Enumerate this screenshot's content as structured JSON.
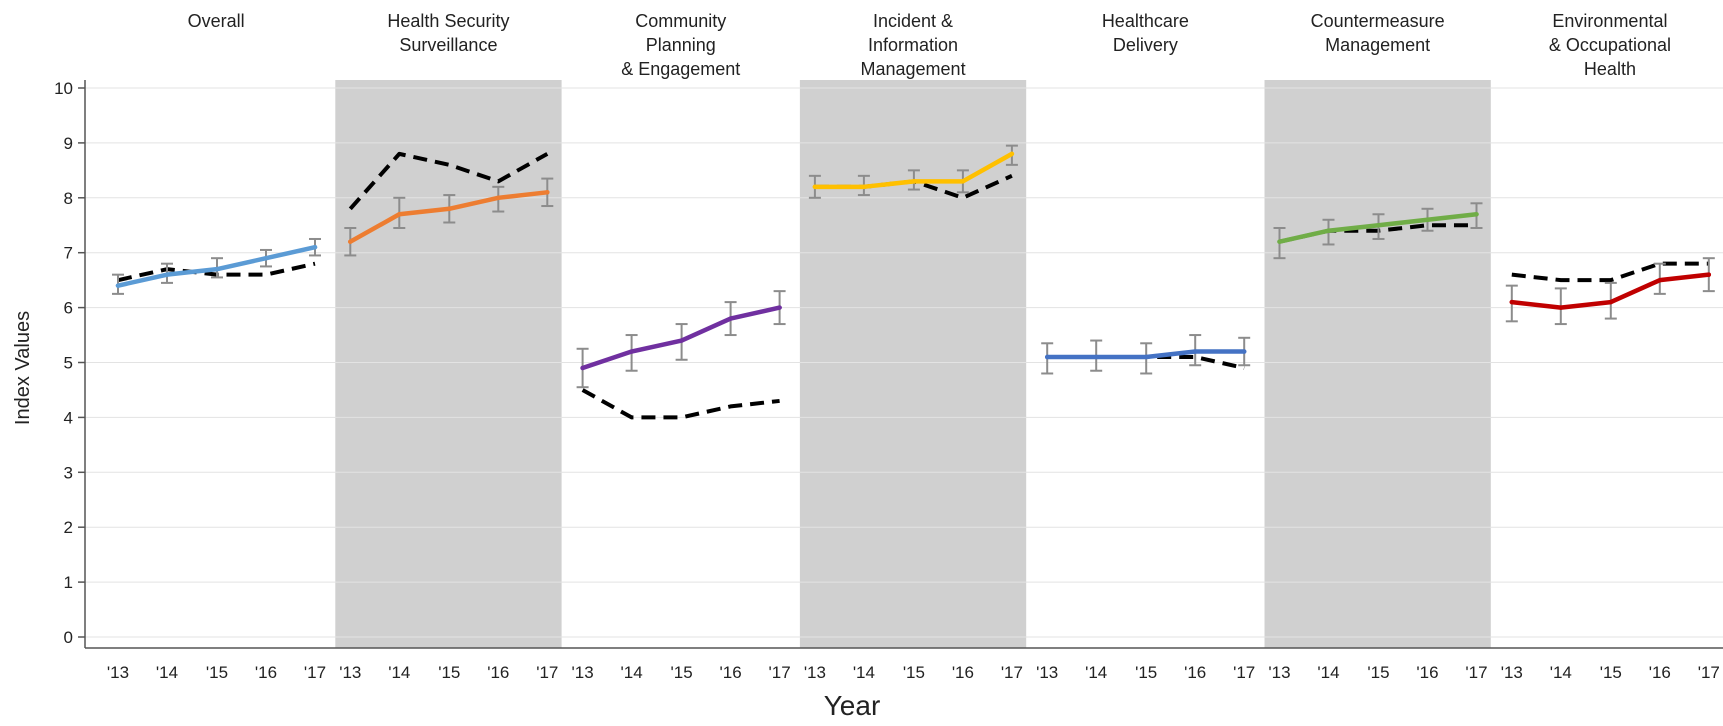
{
  "chart_data": {
    "type": "line",
    "xlabel": "Year",
    "ylabel": "Index Values",
    "ylim": [
      0,
      10
    ],
    "yticks": [
      "0",
      "1",
      "2",
      "3",
      "4",
      "5",
      "6",
      "7",
      "8",
      "9",
      "10"
    ],
    "categories": [
      "'13",
      "'14",
      "'15",
      "'16",
      "'17"
    ],
    "grid": "horizontal",
    "panels": [
      {
        "title_lines": [
          "Overall"
        ],
        "shaded": false,
        "color": "#5b9bd5",
        "values": [
          6.4,
          6.6,
          6.7,
          6.9,
          7.1
        ],
        "error_low": [
          6.25,
          6.45,
          6.55,
          6.75,
          6.95
        ],
        "error_high": [
          6.6,
          6.8,
          6.9,
          7.05,
          7.25
        ],
        "reference": [
          6.5,
          6.7,
          6.6,
          6.6,
          6.8
        ]
      },
      {
        "title_lines": [
          "Health Security",
          "Surveillance"
        ],
        "shaded": true,
        "color": "#ed7d31",
        "values": [
          7.2,
          7.7,
          7.8,
          8.0,
          8.1
        ],
        "error_low": [
          6.95,
          7.45,
          7.55,
          7.75,
          7.85
        ],
        "error_high": [
          7.45,
          8.0,
          8.05,
          8.2,
          8.35
        ],
        "reference": [
          7.8,
          8.8,
          8.6,
          8.3,
          8.8
        ]
      },
      {
        "title_lines": [
          "Community",
          "Planning",
          "& Engagement"
        ],
        "shaded": false,
        "color": "#7030a0",
        "values": [
          4.9,
          5.2,
          5.4,
          5.8,
          6.0
        ],
        "error_low": [
          4.55,
          4.85,
          5.05,
          5.5,
          5.7
        ],
        "error_high": [
          5.25,
          5.5,
          5.7,
          6.1,
          6.3
        ],
        "reference": [
          4.5,
          4.0,
          4.0,
          4.2,
          4.3
        ]
      },
      {
        "title_lines": [
          "Incident &",
          "Information",
          "Management"
        ],
        "shaded": true,
        "color": "#ffc000",
        "values": [
          8.2,
          8.2,
          8.3,
          8.3,
          8.8
        ],
        "error_low": [
          8.0,
          8.05,
          8.15,
          8.1,
          8.6
        ],
        "error_high": [
          8.4,
          8.4,
          8.5,
          8.5,
          8.95
        ],
        "reference": [
          8.2,
          8.2,
          8.3,
          8.0,
          8.4
        ]
      },
      {
        "title_lines": [
          "Healthcare",
          "Delivery"
        ],
        "shaded": false,
        "color": "#4472c4",
        "values": [
          5.1,
          5.1,
          5.1,
          5.2,
          5.2
        ],
        "error_low": [
          4.8,
          4.85,
          4.8,
          4.95,
          4.95
        ],
        "error_high": [
          5.35,
          5.4,
          5.35,
          5.5,
          5.45
        ],
        "reference": [
          5.1,
          5.1,
          5.1,
          5.1,
          4.9
        ]
      },
      {
        "title_lines": [
          "Countermeasure",
          "Management"
        ],
        "shaded": true,
        "color": "#70ad47",
        "values": [
          7.2,
          7.4,
          7.5,
          7.6,
          7.7
        ],
        "error_low": [
          6.9,
          7.15,
          7.25,
          7.4,
          7.45
        ],
        "error_high": [
          7.45,
          7.6,
          7.7,
          7.8,
          7.9
        ],
        "reference": [
          7.2,
          7.4,
          7.4,
          7.5,
          7.5
        ]
      },
      {
        "title_lines": [
          "Environmental",
          "& Occupational",
          "Health"
        ],
        "shaded": false,
        "color": "#c00000",
        "values": [
          6.1,
          6.0,
          6.1,
          6.5,
          6.6
        ],
        "error_low": [
          5.75,
          5.7,
          5.8,
          6.25,
          6.3
        ],
        "error_high": [
          6.4,
          6.35,
          6.45,
          6.8,
          6.9
        ],
        "reference": [
          6.6,
          6.5,
          6.5,
          6.8,
          6.8
        ]
      }
    ],
    "colors": {
      "shade": "#d0d0d0",
      "gridline": "#e3e3e3",
      "axis": "#555555",
      "errorbar": "#8c8c8c",
      "reference": "#000000"
    }
  }
}
